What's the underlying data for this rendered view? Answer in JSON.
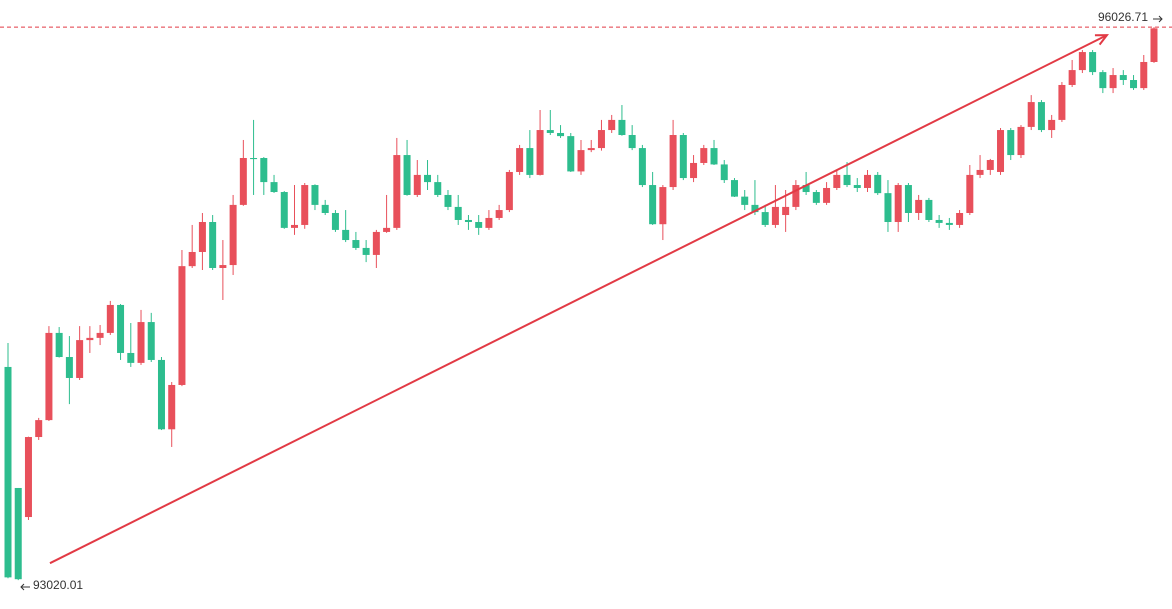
{
  "chart_data": {
    "type": "candlestick",
    "up_color": "#e8505b",
    "down_color": "#2dbd8e",
    "line_color": "#e23a45",
    "ylim": [
      92863,
      96174
    ],
    "open": [
      94179,
      93521,
      93363,
      93798,
      93890,
      94364,
      94233,
      94119,
      94325,
      94337,
      94364,
      94516,
      94255,
      94201,
      94423,
      94217,
      93840,
      94081,
      94727,
      94804,
      94967,
      94717,
      94733,
      95060,
      95315,
      95315,
      95184,
      95130,
      94935,
      94951,
      95168,
      95060,
      95016,
      94924,
      94869,
      94826,
      94788,
      94913,
      94935,
      95331,
      95114,
      95223,
      95184,
      95114,
      95049,
      94978,
      94967,
      94935,
      94989,
      95032,
      95239,
      95369,
      95223,
      95467,
      95451,
      95434,
      95242,
      95358,
      95369,
      95467,
      95522,
      95440,
      95369,
      95168,
      94955,
      95157,
      95440,
      95206,
      95288,
      95369,
      95280,
      95195,
      95105,
      95060,
      95021,
      94951,
      95005,
      95049,
      95168,
      95130,
      95071,
      95152,
      95223,
      95168,
      95152,
      95223,
      95124,
      94967,
      95168,
      95016,
      95087,
      94978,
      94962,
      94951,
      95016,
      95223,
      95250,
      95239,
      95467,
      95331,
      95484,
      95619,
      95467,
      95522,
      95712,
      95793,
      95891,
      95782,
      95695,
      95766,
      95739,
      95695,
      95837
    ],
    "high": [
      94309,
      93521,
      93800,
      93902,
      94401,
      94396,
      94347,
      94401,
      94401,
      94407,
      94538,
      94521,
      94418,
      94489,
      94473,
      94233,
      94097,
      94815,
      94951,
      95016,
      95005,
      94869,
      95114,
      95413,
      95522,
      95320,
      95223,
      95135,
      95168,
      95179,
      95172,
      95087,
      95032,
      95032,
      94913,
      94869,
      94924,
      95114,
      95424,
      95413,
      95304,
      95304,
      95223,
      95141,
      95114,
      95005,
      95005,
      95032,
      95060,
      95250,
      95386,
      95467,
      95576,
      95576,
      95494,
      95451,
      95413,
      95413,
      95522,
      95549,
      95603,
      95494,
      95386,
      95239,
      95168,
      95522,
      95451,
      95331,
      95386,
      95413,
      95304,
      95206,
      95141,
      95195,
      95060,
      95168,
      95141,
      95195,
      95239,
      95141,
      95184,
      95250,
      95293,
      95206,
      95250,
      95239,
      95195,
      95179,
      95179,
      95114,
      95098,
      95005,
      94989,
      95032,
      95277,
      95331,
      95310,
      95478,
      95478,
      95494,
      95657,
      95630,
      95549,
      95728,
      95848,
      95902,
      95902,
      95793,
      95804,
      95793,
      95766,
      95875,
      96026.71
    ],
    "low": [
      93030,
      93020.01,
      93347,
      93782,
      93885,
      94230,
      93977,
      94108,
      94255,
      94298,
      94353,
      94217,
      94179,
      94190,
      94206,
      93836,
      93744,
      94075,
      94717,
      94706,
      94706,
      94543,
      94679,
      95055,
      95114,
      95114,
      95125,
      94930,
      94897,
      94930,
      95032,
      95005,
      94913,
      94858,
      94815,
      94749,
      94717,
      94908,
      94924,
      95110,
      95103,
      95141,
      95103,
      95032,
      94951,
      94924,
      94897,
      94924,
      94978,
      95021,
      95223,
      95206,
      95220,
      95440,
      95424,
      95239,
      95223,
      95347,
      95355,
      95451,
      95436,
      95358,
      95157,
      94951,
      94869,
      95141,
      95195,
      95184,
      95277,
      95277,
      95179,
      95103,
      95032,
      95005,
      94940,
      94935,
      94913,
      95032,
      95114,
      95060,
      95060,
      95141,
      95157,
      95130,
      95130,
      95114,
      94913,
      94913,
      94967,
      94978,
      94967,
      94935,
      94924,
      94935,
      95005,
      95206,
      95223,
      95223,
      95304,
      95315,
      95467,
      95456,
      95424,
      95511,
      95701,
      95777,
      95766,
      95668,
      95668,
      95712,
      95685,
      95685,
      95832
    ],
    "close": [
      93035,
      93025,
      93798,
      93890,
      94364,
      94233,
      94119,
      94325,
      94337,
      94364,
      94516,
      94255,
      94201,
      94423,
      94217,
      93840,
      94081,
      94727,
      94804,
      94967,
      94717,
      94733,
      95060,
      95315,
      95309,
      95184,
      95130,
      94935,
      94951,
      95168,
      95060,
      95016,
      94924,
      94869,
      94826,
      94788,
      94913,
      94935,
      95331,
      95114,
      95223,
      95184,
      95114,
      95049,
      94978,
      94967,
      94935,
      94989,
      95032,
      95239,
      95369,
      95223,
      95467,
      95451,
      95434,
      95242,
      95358,
      95369,
      95467,
      95522,
      95440,
      95369,
      95168,
      94955,
      95157,
      95440,
      95206,
      95288,
      95369,
      95280,
      95195,
      95105,
      95060,
      95021,
      94951,
      95049,
      95049,
      95168,
      95130,
      95071,
      95152,
      95223,
      95168,
      95152,
      95223,
      95124,
      94967,
      95168,
      95016,
      95087,
      94978,
      94962,
      94951,
      95016,
      95223,
      95250,
      95304,
      95467,
      95331,
      95484,
      95619,
      95467,
      95522,
      95712,
      95793,
      95891,
      95782,
      95695,
      95766,
      95739,
      95695,
      95837,
      96020
    ],
    "trendline": {
      "x": [
        4.1,
        107.4
      ],
      "y": [
        93112,
        95983
      ]
    }
  }
}
